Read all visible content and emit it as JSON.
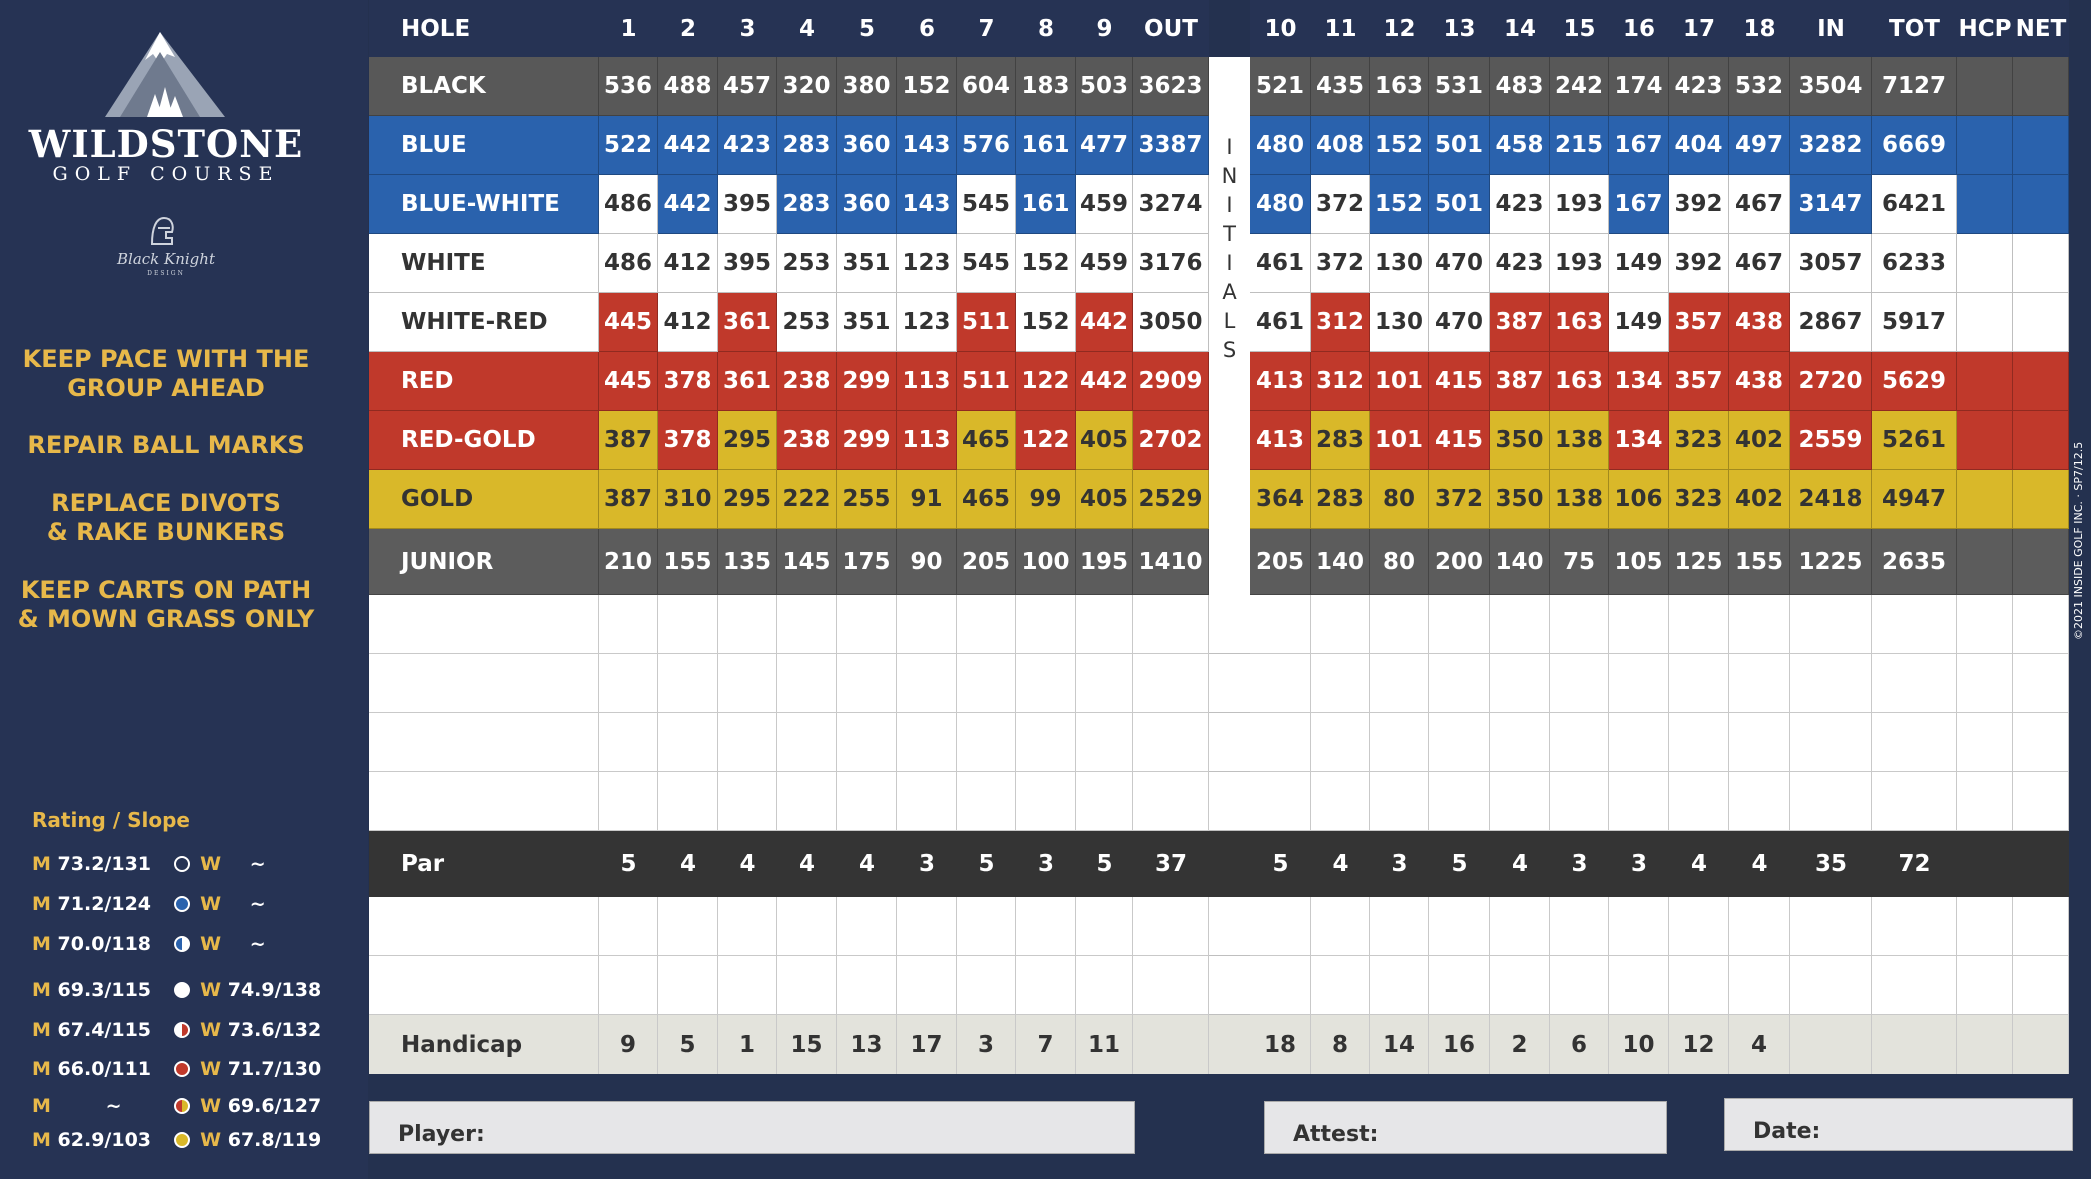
{
  "brand": {
    "name": "WILDSTONE",
    "subtitle": "GOLF COURSE",
    "designer": "Black Knight",
    "designer_sub": "DESIGN"
  },
  "tips": [
    "KEEP PACE WITH THE\nGROUP AHEAD",
    "REPAIR BALL MARKS",
    "REPLACE DIVOTS\n& RAKE BUNKERS",
    "KEEP CARTS ON PATH\n& MOWN GRASS ONLY"
  ],
  "rating": {
    "heading": "Rating / Slope",
    "rows": [
      {
        "m_label": "M",
        "m_val": "73.2/131",
        "w_label": "W",
        "w_val": "~",
        "dot": "black"
      },
      {
        "m_label": "M",
        "m_val": "71.2/124",
        "w_label": "W",
        "w_val": "~",
        "dot": "blue"
      },
      {
        "m_label": "M",
        "m_val": "70.0/118",
        "w_label": "W",
        "w_val": "~",
        "dot": "blue-white"
      },
      {
        "m_label": "M",
        "m_val": "69.3/115",
        "w_label": "W",
        "w_val": "74.9/138",
        "dot": "white"
      },
      {
        "m_label": "M",
        "m_val": "67.4/115",
        "w_label": "W",
        "w_val": "73.6/132",
        "dot": "white-red"
      },
      {
        "m_label": "M",
        "m_val": "66.0/111",
        "w_label": "W",
        "w_val": "71.7/130",
        "dot": "red"
      },
      {
        "m_label": "M",
        "m_val": "~",
        "w_label": "W",
        "w_val": "69.6/127",
        "dot": "red-gold"
      },
      {
        "m_label": "M",
        "m_val": "62.9/103",
        "w_label": "W",
        "w_val": "67.8/119",
        "dot": "gold"
      }
    ]
  },
  "colors": {
    "black": "#585858",
    "blue": "#2a62ad",
    "white": "#ffffff",
    "red": "#c0392b",
    "gold": "#d9b829",
    "junior": "#5c5c5c",
    "par": "#343434",
    "handicap": "#e3e3dc",
    "navy": "#263354"
  },
  "header": {
    "hole": "HOLE",
    "front": [
      "1",
      "2",
      "3",
      "4",
      "5",
      "6",
      "7",
      "8",
      "9"
    ],
    "out": "OUT",
    "back": [
      "10",
      "11",
      "12",
      "13",
      "14",
      "15",
      "16",
      "17",
      "18"
    ],
    "in": "IN",
    "tot": "TOT",
    "hcp": "HCP",
    "net": "NET"
  },
  "tees": [
    {
      "name": "BLACK",
      "front": [
        "536",
        "488",
        "457",
        "320",
        "380",
        "152",
        "604",
        "183",
        "503"
      ],
      "out": "3623",
      "back": [
        "521",
        "435",
        "163",
        "531",
        "483",
        "242",
        "174",
        "423",
        "532"
      ],
      "in": "3504",
      "tot": "7127",
      "style": "black",
      "alt": []
    },
    {
      "name": "BLUE",
      "front": [
        "522",
        "442",
        "423",
        "283",
        "360",
        "143",
        "576",
        "161",
        "477"
      ],
      "out": "3387",
      "back": [
        "480",
        "408",
        "152",
        "501",
        "458",
        "215",
        "167",
        "404",
        "497"
      ],
      "in": "3282",
      "tot": "6669",
      "style": "blue",
      "alt": []
    },
    {
      "name": "BLUE-WHITE",
      "front": [
        "486",
        "442",
        "395",
        "283",
        "360",
        "143",
        "545",
        "161",
        "459"
      ],
      "out": "3274",
      "back": [
        "480",
        "372",
        "152",
        "501",
        "423",
        "193",
        "167",
        "392",
        "467"
      ],
      "in": "3147",
      "tot": "6421",
      "style": "blue",
      "alt": [
        "f0",
        "f2",
        "f6",
        "f8",
        "o",
        "b1",
        "b4",
        "b5",
        "b7",
        "b8",
        "t"
      ]
    },
    {
      "name": "WHITE",
      "front": [
        "486",
        "412",
        "395",
        "253",
        "351",
        "123",
        "545",
        "152",
        "459"
      ],
      "out": "3176",
      "back": [
        "461",
        "372",
        "130",
        "470",
        "423",
        "193",
        "149",
        "392",
        "467"
      ],
      "in": "3057",
      "tot": "6233",
      "style": "white",
      "alt": []
    },
    {
      "name": "WHITE-RED",
      "front": [
        "445",
        "412",
        "361",
        "253",
        "351",
        "123",
        "511",
        "152",
        "442"
      ],
      "out": "3050",
      "back": [
        "461",
        "312",
        "130",
        "470",
        "387",
        "163",
        "149",
        "357",
        "438"
      ],
      "in": "2867",
      "tot": "5917",
      "style": "white",
      "alt": [
        "f0",
        "f2",
        "f6",
        "f8",
        "b1",
        "b4",
        "b5",
        "b7",
        "b8"
      ]
    },
    {
      "name": "RED",
      "front": [
        "445",
        "378",
        "361",
        "238",
        "299",
        "113",
        "511",
        "122",
        "442"
      ],
      "out": "2909",
      "back": [
        "413",
        "312",
        "101",
        "415",
        "387",
        "163",
        "134",
        "357",
        "438"
      ],
      "in": "2720",
      "tot": "5629",
      "style": "red",
      "alt": []
    },
    {
      "name": "RED-GOLD",
      "front": [
        "387",
        "378",
        "295",
        "238",
        "299",
        "113",
        "465",
        "122",
        "405"
      ],
      "out": "2702",
      "back": [
        "413",
        "283",
        "101",
        "415",
        "350",
        "138",
        "134",
        "323",
        "402"
      ],
      "in": "2559",
      "tot": "5261",
      "style": "red",
      "alt": [
        "f0",
        "f2",
        "f6",
        "f8",
        "b1",
        "b4",
        "b5",
        "b7",
        "b8",
        "t"
      ]
    },
    {
      "name": "GOLD",
      "front": [
        "387",
        "310",
        "295",
        "222",
        "255",
        "91",
        "465",
        "99",
        "405"
      ],
      "out": "2529",
      "back": [
        "364",
        "283",
        "80",
        "372",
        "350",
        "138",
        "106",
        "323",
        "402"
      ],
      "in": "2418",
      "tot": "4947",
      "style": "gold",
      "alt": []
    },
    {
      "name": "JUNIOR",
      "front": [
        "210",
        "155",
        "135",
        "145",
        "175",
        "90",
        "205",
        "100",
        "195"
      ],
      "out": "1410",
      "back": [
        "205",
        "140",
        "80",
        "200",
        "140",
        "75",
        "105",
        "125",
        "155"
      ],
      "in": "1225",
      "tot": "2635",
      "style": "junior",
      "alt": []
    }
  ],
  "par": {
    "label": "Par",
    "front": [
      "5",
      "4",
      "4",
      "4",
      "4",
      "3",
      "5",
      "3",
      "5"
    ],
    "out": "37",
    "back": [
      "5",
      "4",
      "3",
      "5",
      "4",
      "3",
      "3",
      "4",
      "4"
    ],
    "in": "35",
    "tot": "72"
  },
  "handicap": {
    "label": "Handicap",
    "front": [
      "9",
      "5",
      "1",
      "15",
      "13",
      "17",
      "3",
      "7",
      "11"
    ],
    "out": "",
    "back": [
      "18",
      "8",
      "14",
      "16",
      "2",
      "6",
      "10",
      "12",
      "4"
    ],
    "in": "",
    "tot": ""
  },
  "initials": "INITIALS",
  "fields": {
    "player": "Player:",
    "attest": "Attest:",
    "date": "Date:"
  },
  "copyright": "©2021 INSIDE GOLF INC. · SP7/12.5"
}
